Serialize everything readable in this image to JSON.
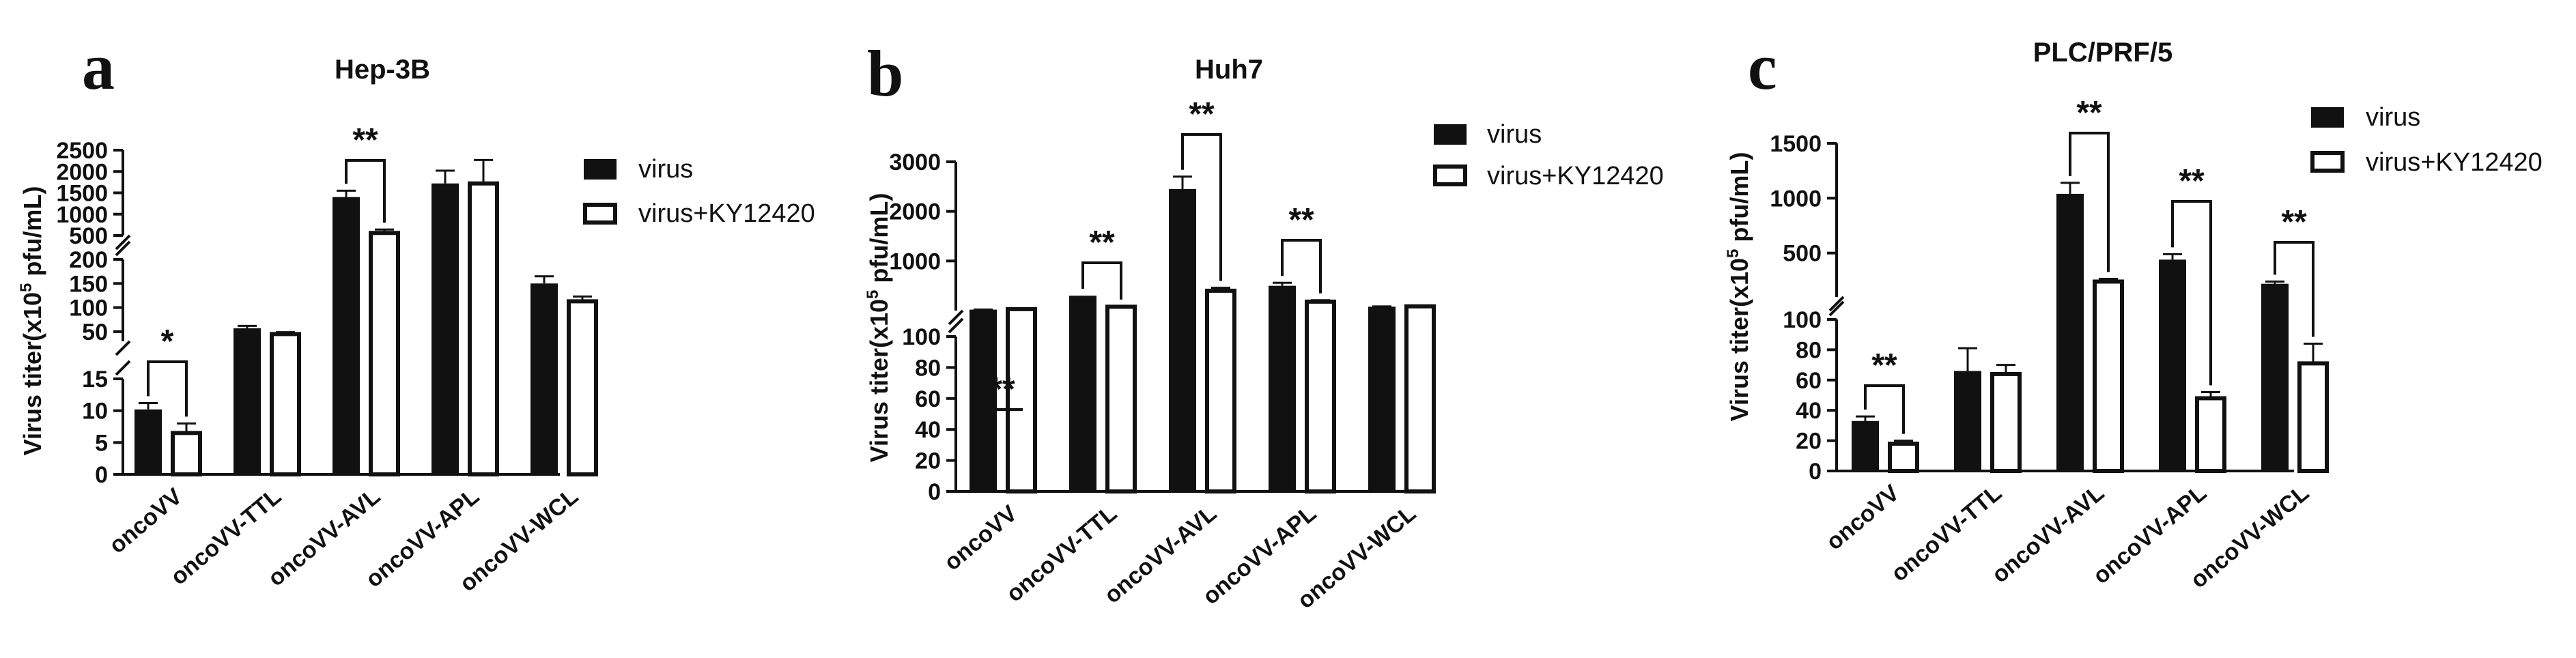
{
  "figure": {
    "legend": [
      "virus",
      "virus+KY12420"
    ],
    "y_axis_label": "Virus titer(x10",
    "y_axis_label_sup": "5",
    "y_axis_label_end": " pfu/mL)"
  },
  "chart_data": [
    {
      "panel": "a",
      "type": "bar",
      "title": "Hep-3B",
      "ylabel": "Virus titer(x10^5 pfu/mL)",
      "categories": [
        "oncoVV",
        "oncoVV-TTL",
        "oncoVV-AVL",
        "oncoVV-APL",
        "oncoVV-WCL"
      ],
      "series": [
        {
          "name": "virus",
          "values": [
            10.2,
            57,
            1400,
            1720,
            150
          ],
          "errors": [
            1.0,
            5,
            150,
            300,
            15
          ]
        },
        {
          "name": "virus+KY12420",
          "values": [
            6.5,
            45,
            560,
            1720,
            113
          ],
          "errors": [
            1.5,
            4,
            80,
            550,
            10
          ]
        }
      ],
      "y_axis_segments": [
        {
          "range": [
            0,
            15
          ],
          "ticks": [
            0,
            5,
            10,
            15
          ]
        },
        {
          "range": [
            30,
            200
          ],
          "ticks": [
            50,
            100,
            150,
            200
          ]
        },
        {
          "range": [
            500,
            2500
          ],
          "ticks": [
            500,
            1000,
            1500,
            2000,
            2500
          ]
        }
      ],
      "significance": [
        {
          "category": "oncoVV",
          "label": "*"
        },
        {
          "category": "oncoVV-AVL",
          "label": "**"
        }
      ],
      "legend_position": "right"
    },
    {
      "panel": "b",
      "type": "bar",
      "title": "Huh7",
      "ylabel": "Virus titer(x10^5 pfu/mL)",
      "categories": [
        "oncoVV",
        "oncoVV-TTL",
        "oncoVV-AVL",
        "oncoVV-APL",
        "oncoVV-WCL"
      ],
      "series": [
        {
          "name": "virus",
          "values": [
            19,
            300,
            2450,
            500,
            78
          ],
          "errors": [
            2,
            0,
            250,
            60,
            7
          ]
        },
        {
          "name": "virus+KY12420",
          "values": [
            29,
            77,
            400,
            180,
            85
          ],
          "errors": [
            0,
            7,
            60,
            30,
            8
          ]
        }
      ],
      "y_axis_segments": [
        {
          "range": [
            0,
            100
          ],
          "ticks": [
            0,
            20,
            40,
            60,
            80,
            100
          ]
        },
        {
          "range": [
            0,
            3000
          ],
          "ticks": [
            1000,
            2000,
            3000
          ]
        }
      ],
      "significance": [
        {
          "category": "oncoVV",
          "label": "**"
        },
        {
          "category": "oncoVV-TTL",
          "label": "**"
        },
        {
          "category": "oncoVV-AVL",
          "label": "**"
        },
        {
          "category": "oncoVV-APL",
          "label": "**"
        }
      ],
      "legend_position": "top-right"
    },
    {
      "panel": "c",
      "type": "bar",
      "title": "PLC/PRF/5",
      "ylabel": "Virus titer(x10^5 pfu/mL)",
      "categories": [
        "oncoVV",
        "oncoVV-TTL",
        "oncoVV-AVL",
        "oncoVV-APL",
        "oncoVV-WCL"
      ],
      "series": [
        {
          "name": "virus",
          "values": [
            33,
            66,
            1040,
            440,
            220
          ],
          "errors": [
            3,
            15,
            100,
            50,
            20
          ]
        },
        {
          "name": "virus+KY12420",
          "values": [
            18,
            64,
            240,
            48,
            71
          ],
          "errors": [
            2,
            6,
            25,
            4,
            13
          ]
        }
      ],
      "y_axis_segments": [
        {
          "range": [
            0,
            100
          ],
          "ticks": [
            0,
            20,
            40,
            60,
            80,
            100
          ]
        },
        {
          "range": [
            100,
            1500
          ],
          "ticks": [
            500,
            1000,
            1500
          ]
        }
      ],
      "significance": [
        {
          "category": "oncoVV",
          "label": "**"
        },
        {
          "category": "oncoVV-AVL",
          "label": "**"
        },
        {
          "category": "oncoVV-APL",
          "label": "**"
        },
        {
          "category": "oncoVV-WCL",
          "label": "**"
        }
      ],
      "legend_position": "top-right"
    }
  ]
}
